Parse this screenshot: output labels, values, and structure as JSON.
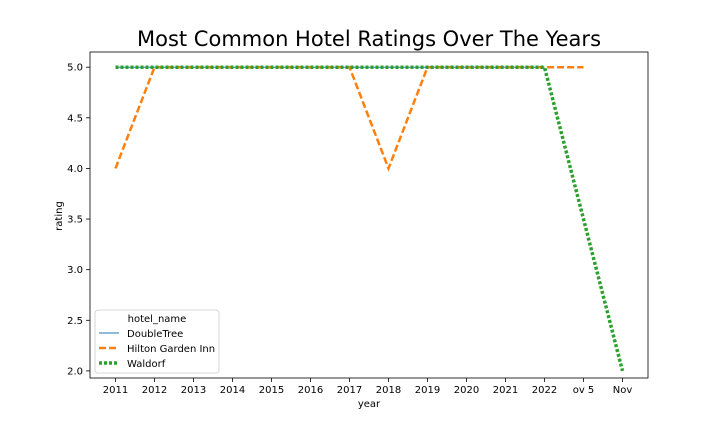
{
  "chart_data": {
    "type": "line",
    "title": "Most Common Hotel Ratings Over The Years",
    "xlabel": "year",
    "ylabel": "rating",
    "categories": [
      "2011",
      "2012",
      "2013",
      "2014",
      "2015",
      "2016",
      "2017",
      "2018",
      "2019",
      "2020",
      "2021",
      "2022",
      "ov 5",
      "Nov"
    ],
    "yticks": [
      "2.0",
      "2.5",
      "3.0",
      "3.5",
      "4.0",
      "4.5",
      "5.0"
    ],
    "ylim": [
      1.93,
      5.15
    ],
    "grid": false,
    "legend": {
      "title": "hotel_name",
      "position": "lower-left"
    },
    "series": [
      {
        "name": "DoubleTree",
        "color": "#1f77b4",
        "style": "solid",
        "values": [
          5,
          5,
          5,
          5,
          5,
          5,
          5,
          5,
          5,
          5,
          5,
          5,
          null,
          null
        ]
      },
      {
        "name": "Hilton Garden Inn",
        "color": "#ff7f0e",
        "style": "dashed",
        "values": [
          4,
          5,
          5,
          5,
          5,
          5,
          5,
          4,
          5,
          5,
          5,
          5,
          5,
          null
        ]
      },
      {
        "name": "Waldorf",
        "color": "#2ca02c",
        "style": "dotted",
        "values": [
          5,
          5,
          5,
          5,
          5,
          5,
          5,
          5,
          5,
          5,
          5,
          5,
          null,
          2
        ]
      }
    ]
  }
}
